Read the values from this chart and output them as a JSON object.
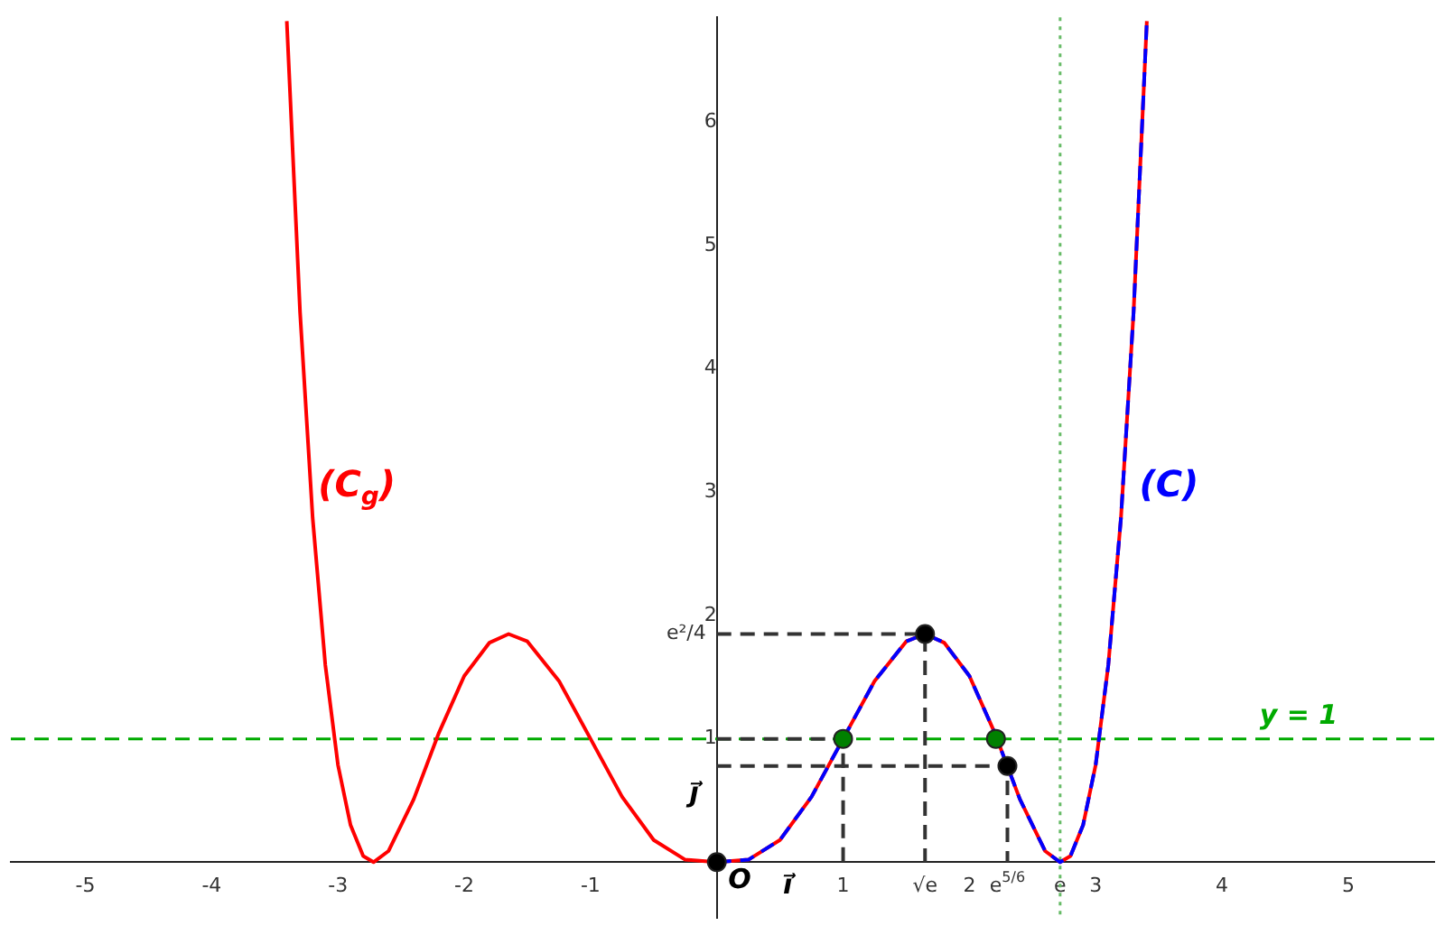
{
  "chart_data": {
    "type": "line",
    "xlim": [
      -5.59,
      5.68
    ],
    "ylim": [
      -0.45,
      6.85
    ],
    "xticks": [
      -5,
      -4,
      -3,
      -2,
      -1,
      1,
      2,
      3,
      4,
      5,
      {
        "value": 1.6487,
        "label": "√e"
      },
      {
        "value": 2.301,
        "label": "e$^{5/6}$"
      },
      {
        "value": 2.7183,
        "label": "e"
      }
    ],
    "yticks": [
      1,
      2,
      3,
      4,
      5,
      6
    ],
    "series": [
      {
        "color": "#ff0000",
        "line_style": "solid",
        "x": [
          -3.405,
          -3.3,
          -3.2,
          -3.1,
          -3.0,
          -2.9,
          -2.8,
          -2.7183,
          -2.6,
          -2.4,
          -2.2,
          -2.0,
          -1.8,
          -1.6487,
          -1.5,
          -1.25,
          -1.0,
          -0.75,
          -0.5,
          -0.25,
          0,
          0.25,
          0.5,
          0.75,
          1,
          1.25,
          1.5,
          1.6487,
          1.8,
          2.0,
          2.2,
          2.4,
          2.6,
          2.7183,
          2.8,
          2.9,
          3.0,
          3.1,
          3.2,
          3.3,
          3.405
        ],
        "values": [
          6.82,
          4.46,
          2.79,
          1.6,
          0.79,
          0.3,
          0.05,
          0,
          0.09,
          0.51,
          1.05,
          1.51,
          1.78,
          1.85,
          1.79,
          1.47,
          1,
          0.53,
          0.18,
          0.02,
          0,
          0.02,
          0.18,
          0.53,
          1,
          1.47,
          1.79,
          1.85,
          1.78,
          1.51,
          1.05,
          0.51,
          0.09,
          0,
          0.05,
          0.3,
          0.79,
          1.6,
          2.79,
          4.46,
          6.82
        ]
      },
      {
        "color": "#0000ff",
        "line_style": "dashed",
        "x": [
          0,
          0.25,
          0.5,
          0.75,
          1,
          1.25,
          1.5,
          1.6487,
          1.8,
          2.0,
          2.2,
          2.4,
          2.6,
          2.7183,
          2.8,
          2.9,
          3.0,
          3.1,
          3.2,
          3.3,
          3.405
        ],
        "values": [
          0,
          0.02,
          0.18,
          0.53,
          1,
          1.47,
          1.79,
          1.85,
          1.78,
          1.51,
          1.05,
          0.51,
          0.09,
          0,
          0.05,
          0.3,
          0.79,
          1.6,
          2.79,
          4.46,
          6.82
        ]
      },
      {
        "color": "#333333",
        "line_style": "dashed",
        "x": [
          0,
          1.6487,
          1.6487
        ],
        "values": [
          1.85,
          1.85,
          0
        ]
      },
      {
        "color": "#333333",
        "line_style": "dashed",
        "x": [
          0,
          1,
          1
        ],
        "values": [
          1,
          1,
          0
        ]
      },
      {
        "color": "#333333",
        "line_style": "dashed",
        "x": [
          0,
          2.301,
          2.301
        ],
        "values": [
          0.78,
          0.78,
          0
        ]
      },
      {
        "type": "scatter",
        "color": "#008000",
        "marker": "circle",
        "x": [
          1,
          2.21
        ],
        "values": [
          1,
          1
        ]
      },
      {
        "type": "scatter",
        "color": "#000000",
        "marker": "circle",
        "x": [
          1.6487,
          2.301,
          0
        ],
        "values": [
          1.85,
          0.78,
          0
        ]
      }
    ],
    "ref_lines": [
      {
        "axis": "y",
        "value": 1,
        "label": "y = 1",
        "color": "#00aa00",
        "line_style": "dashed"
      },
      {
        "axis": "x",
        "value": 2.7183,
        "color": "#66bb66",
        "line_style": "dotted"
      }
    ],
    "annotations": [
      "(C$_{g}$)",
      "(C)",
      "O",
      "i⃗",
      "j⃗",
      "e²/4"
    ]
  }
}
